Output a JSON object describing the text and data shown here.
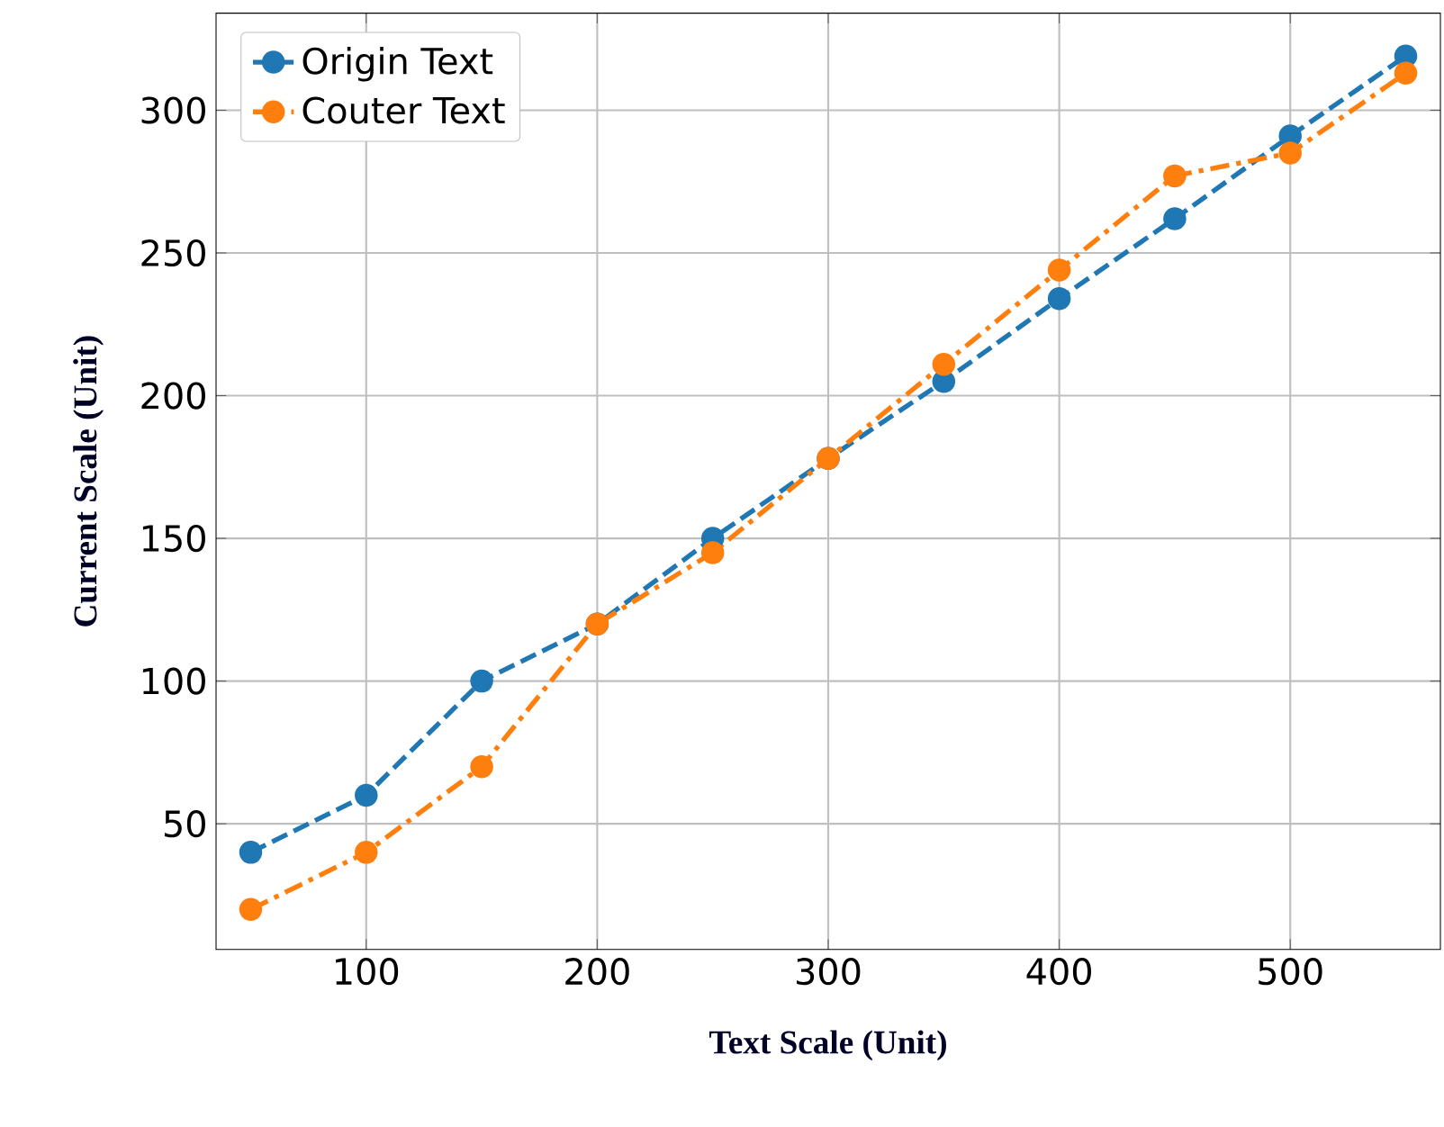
{
  "chart_data": {
    "type": "line",
    "xlabel": "Text Scale (Unit)",
    "ylabel": "Current Scale (Unit)",
    "x": [
      50,
      100,
      150,
      200,
      250,
      300,
      350,
      400,
      450,
      500,
      550
    ],
    "series": [
      {
        "name": "Origin Text",
        "color": "#1f77b4",
        "line_style": "dashed",
        "values": [
          40,
          60,
          100,
          120,
          150,
          178,
          205,
          234,
          262,
          291,
          319
        ]
      },
      {
        "name": "Couter Text",
        "color": "#ff7f0e",
        "line_style": "dashdot",
        "values": [
          20,
          40,
          70,
          120,
          145,
          178,
          211,
          244,
          277,
          285,
          313
        ]
      }
    ],
    "xlim": [
      35,
      565
    ],
    "ylim": [
      6,
      334
    ],
    "xticks": [
      100,
      200,
      300,
      400,
      500
    ],
    "yticks": [
      50,
      100,
      150,
      200,
      250,
      300
    ],
    "grid": true,
    "legend": "top left",
    "marker": "circle"
  }
}
